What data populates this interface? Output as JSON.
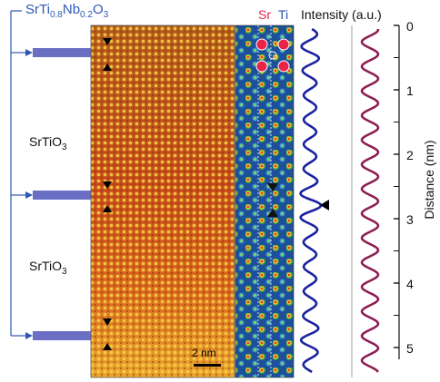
{
  "top_label": {
    "base": "SrTi",
    "sub1": "0.8",
    "mid": "Nb",
    "sub2": "0.2",
    "end": "O",
    "sub3": "3"
  },
  "layer_label_1": {
    "base": "SrTiO",
    "sub": "3"
  },
  "layer_label_2": {
    "base": "SrTiO",
    "sub": "3"
  },
  "column_sr": "Sr",
  "column_ti": "Ti",
  "intensity_label": "Intensity (a.u.)",
  "distance_axis": {
    "label": "Distance (nm)",
    "ticks": [
      "0",
      "1",
      "2",
      "3",
      "4",
      "5"
    ]
  },
  "scale_bar": "2 nm",
  "colors": {
    "doped_layer": "#6a6fc4",
    "blue_label": "#2f58b3",
    "sr_red": "#e8244a",
    "ti_blue": "#2a52b0",
    "profile_blue": "#1a22a0",
    "profile_red": "#8e1e52"
  }
}
